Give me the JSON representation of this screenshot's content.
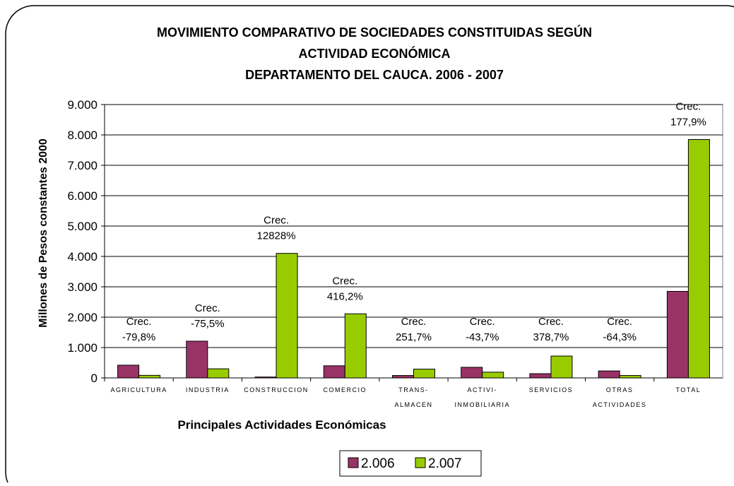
{
  "chart_data": {
    "type": "bar",
    "title": [
      "MOVIMIENTO COMPARATIVO DE SOCIEDADES CONSTITUIDAS SEGÚN",
      "ACTIVIDAD ECONÓMICA",
      "DEPARTAMENTO DEL CAUCA. 2006 - 2007"
    ],
    "x_label": "Principales Actividades Económicas",
    "y_label": "Millones de Pesos constantes 2000",
    "categories": [
      "AGRICULTURA",
      "INDUSTRIA",
      "CONSTRUCCION",
      "COMERCIO",
      "TRANS-\nALMACEN",
      "ACTIVI-\nINMOBILIARIA",
      "SERVICIOS",
      "OTRAS\nACTIVIDADES",
      "TOTAL"
    ],
    "annotations": [
      "Crec.\n-79,8%",
      "Crec.\n-75,5%",
      "Crec.\n12828%",
      "Crec.\n416,2%",
      "Crec.\n251,7%",
      "Crec.\n-43,7%",
      "Crec.\n378,7%",
      "Crec.\n-64,3%",
      "Crec.\n177,9%"
    ],
    "series": [
      {
        "name": "2.006",
        "color": "#993366",
        "values": [
          420,
          1210,
          30,
          400,
          80,
          350,
          140,
          230,
          2850
        ]
      },
      {
        "name": "2.007",
        "color": "#99cc00",
        "values": [
          85,
          300,
          4100,
          2110,
          290,
          190,
          720,
          80,
          7850
        ]
      }
    ],
    "ylim": [
      0,
      9000
    ],
    "yticks": [
      0,
      {
        "value": 1000,
        "label": "1.000"
      },
      {
        "value": 2000,
        "label": "2.000"
      },
      {
        "value": 3000,
        "label": "3.000"
      },
      {
        "value": 4000,
        "label": "4.000"
      },
      {
        "value": 5000,
        "label": "5.000"
      },
      {
        "value": 6000,
        "label": "6.000"
      },
      {
        "value": 7000,
        "label": "7.000"
      },
      {
        "value": 8000,
        "label": "8.000"
      },
      {
        "value": 9000,
        "label": "9.000"
      }
    ],
    "grid": true
  }
}
